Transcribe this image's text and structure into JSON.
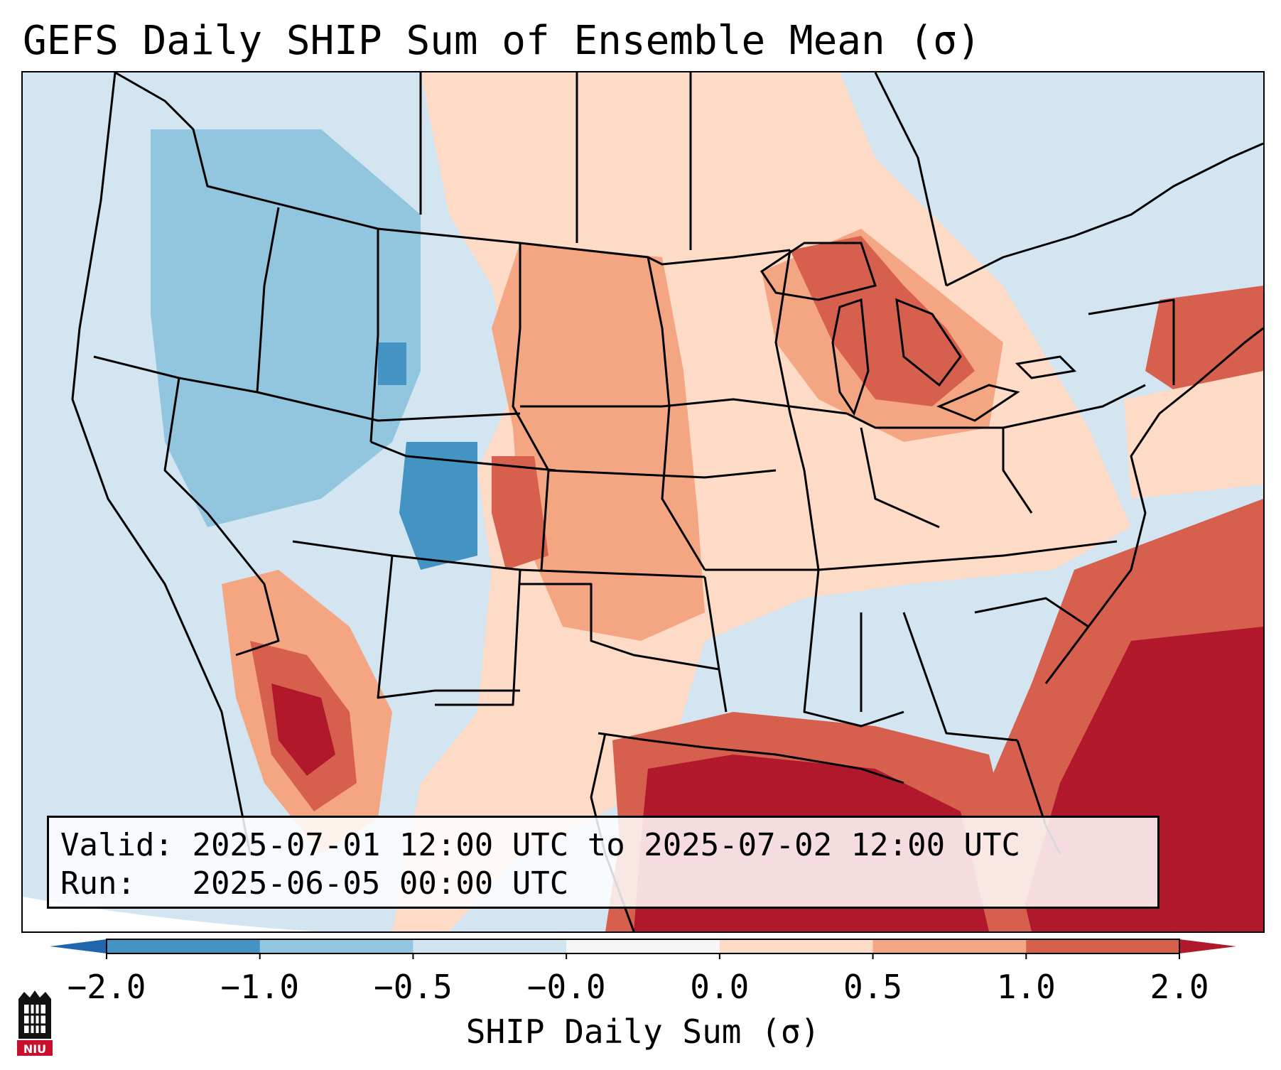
{
  "title": "GEFS Daily SHIP Sum of Ensemble Mean (σ)",
  "info": {
    "valid_label": "Valid:",
    "valid_value": "2025-07-01 12:00 UTC to 2025-07-02 12:00 UTC",
    "run_label": "Run:",
    "run_value": "2025-06-05 00:00 UTC"
  },
  "colorbar": {
    "title": "SHIP Daily Sum (σ)",
    "ticks": [
      "−2.0",
      "−1.0",
      "−0.5",
      "−0.0",
      "0.0",
      "0.5",
      "1.0",
      "2.0"
    ],
    "colors": [
      "#2166ac",
      "#4393c3",
      "#92c5de",
      "#d1e5f0",
      "#f7f7f7",
      "#fddbc7",
      "#f4a582",
      "#d6604d",
      "#b2182b"
    ]
  },
  "logo": {
    "text": "NIU",
    "color": "#c8102e"
  }
}
